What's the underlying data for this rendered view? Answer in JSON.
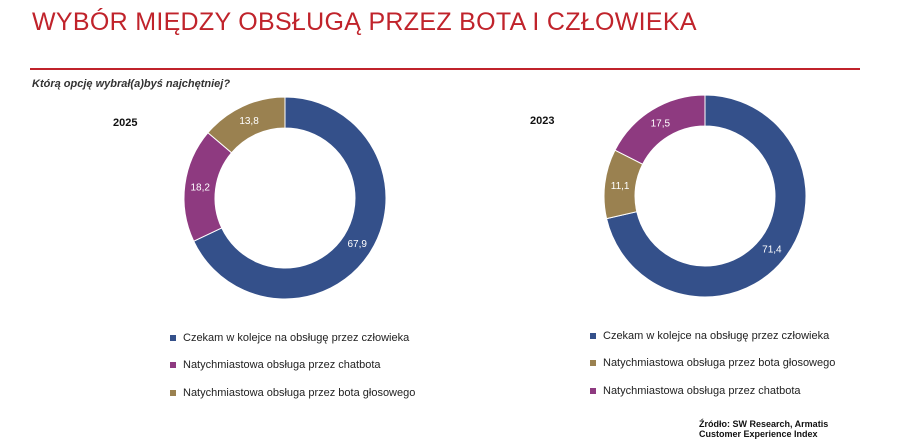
{
  "title": "WYBÓR MIĘDZY OBSŁUGĄ PRZEZ BOTA I CZŁOWIEKA",
  "question": "Którą opcję wybrał(a)byś najchętniej?",
  "colors": {
    "title_accent": "#c0232b",
    "czekam": "#34508a",
    "chatbot": "#8e3a80",
    "bot_glosowy": "#9a8150"
  },
  "chart_data": [
    {
      "type": "pie",
      "title": "2025",
      "slices": [
        {
          "label": "Czekam w kolejce na obsługę przez człowieka",
          "value": 67.9,
          "value_label": "67,9",
          "color": "#34508a"
        },
        {
          "label": "Natychmiastowa obsługa przez chatbota",
          "value": 18.2,
          "value_label": "18,2",
          "color": "#8e3a80"
        },
        {
          "label": "Natychmiastowa obsługa przez bota głosowego",
          "value": 13.8,
          "value_label": "13,8",
          "color": "#9a8150"
        }
      ],
      "legend": [
        {
          "label": "Czekam w kolejce na obsługę przez człowieka",
          "color": "#34508a"
        },
        {
          "label": "Natychmiastowa obsługa przez chatbota",
          "color": "#8e3a80"
        },
        {
          "label": "Natychmiastowa obsługa przez bota głosowego",
          "color": "#9a8150"
        }
      ]
    },
    {
      "type": "pie",
      "title": "2023",
      "slices": [
        {
          "label": "Czekam w kolejce na obsługę przez człowieka",
          "value": 71.4,
          "value_label": "71,4",
          "color": "#34508a"
        },
        {
          "label": "Natychmiastowa obsługa przez bota głosowego",
          "value": 11.1,
          "value_label": "11,1",
          "color": "#9a8150"
        },
        {
          "label": "Natychmiastowa obsługa przez chatbota",
          "value": 17.5,
          "value_label": "17,5",
          "color": "#8e3a80"
        }
      ],
      "legend": [
        {
          "label": "Czekam w kolejce na obsługę przez człowieka",
          "color": "#34508a"
        },
        {
          "label": "Natychmiastowa obsługa przez bota głosowego",
          "color": "#9a8150"
        },
        {
          "label": "Natychmiastowa obsługa przez chatbota",
          "color": "#8e3a80"
        }
      ]
    }
  ],
  "source": "Źródło: SW Research, Armatis Customer Experience Index"
}
